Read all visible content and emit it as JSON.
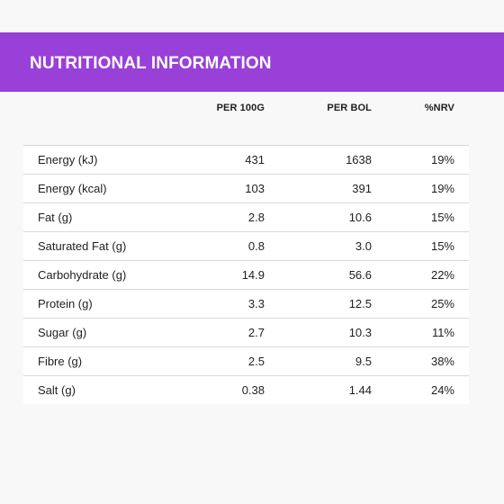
{
  "header": {
    "title": "NUTRITIONAL INFORMATION"
  },
  "colors": {
    "banner": "#9840d7",
    "banner_text": "#ffffff",
    "page_background": "#f8f8f8",
    "table_background": "#ffffff",
    "row_divider": "#d8d8d8"
  },
  "table": {
    "columns": [
      "",
      "PER 100G",
      "PER BOL",
      "%NRV"
    ],
    "rows": [
      {
        "name": "Energy (kJ)",
        "per_100g": "431",
        "per_bol": "1638",
        "nrv": "19%"
      },
      {
        "name": "Energy (kcal)",
        "per_100g": "103",
        "per_bol": "391",
        "nrv": "19%"
      },
      {
        "name": "Fat (g)",
        "per_100g": "2.8",
        "per_bol": "10.6",
        "nrv": "15%"
      },
      {
        "name": "Saturated Fat (g)",
        "per_100g": "0.8",
        "per_bol": "3.0",
        "nrv": "15%"
      },
      {
        "name": "Carbohydrate (g)",
        "per_100g": "14.9",
        "per_bol": "56.6",
        "nrv": "22%"
      },
      {
        "name": "Protein (g)",
        "per_100g": "3.3",
        "per_bol": "12.5",
        "nrv": "25%"
      },
      {
        "name": "Sugar (g)",
        "per_100g": "2.7",
        "per_bol": "10.3",
        "nrv": "11%"
      },
      {
        "name": "Fibre (g)",
        "per_100g": "2.5",
        "per_bol": "9.5",
        "nrv": "38%"
      },
      {
        "name": "Salt (g)",
        "per_100g": "0.38",
        "per_bol": "1.44",
        "nrv": "24%"
      }
    ]
  }
}
